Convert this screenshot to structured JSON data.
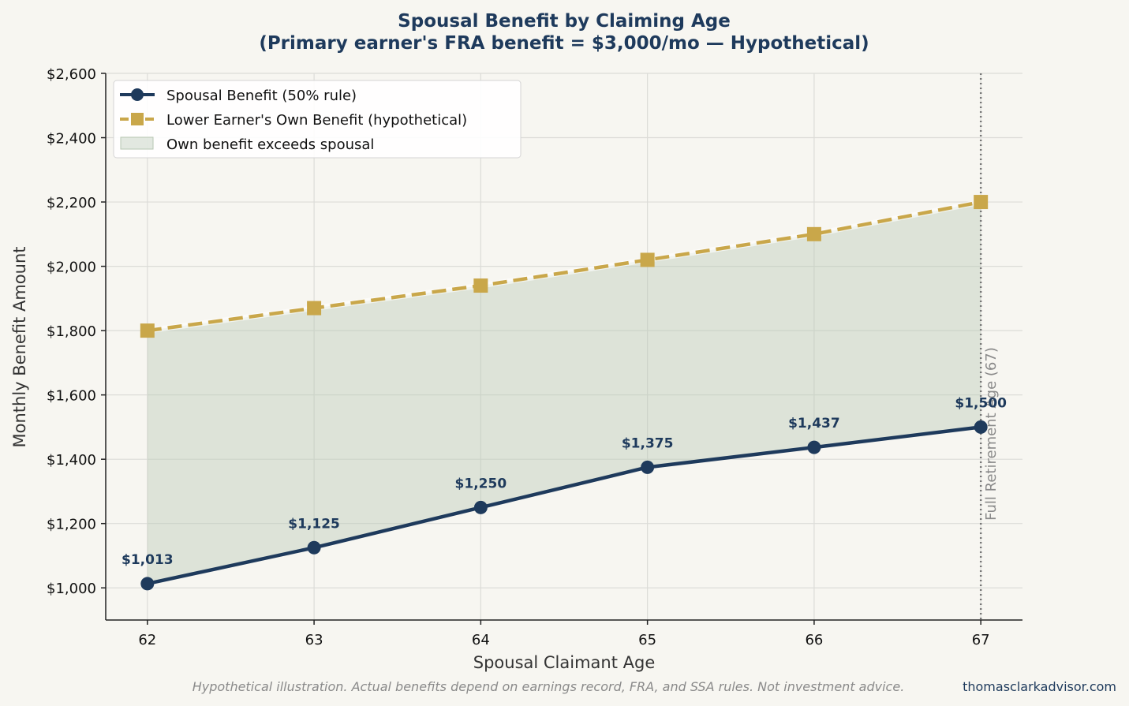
{
  "chart_data": {
    "type": "line",
    "title_line1": "Spousal Benefit by Claiming Age",
    "title_line2": "(Primary earner's FRA benefit = $3,000/mo — Hypothetical)",
    "xlabel": "Spousal Claimant Age",
    "ylabel": "Monthly Benefit Amount",
    "x": [
      62,
      63,
      64,
      65,
      66,
      67
    ],
    "x_tick_labels": [
      "62",
      "63",
      "64",
      "65",
      "66",
      "67"
    ],
    "xlim": [
      61.75,
      67.25
    ],
    "ylim": [
      900,
      2600
    ],
    "y_ticks": [
      1000,
      1200,
      1400,
      1600,
      1800,
      2000,
      2200,
      2400,
      2600
    ],
    "y_tick_labels": [
      "$1,000",
      "$1,200",
      "$1,400",
      "$1,600",
      "$1,800",
      "$2,000",
      "$2,200",
      "$2,400",
      "$2,600"
    ],
    "grid": true,
    "legend_position": "top-left",
    "series": [
      {
        "name": "Spousal Benefit (50% rule)",
        "values": [
          1013,
          1125,
          1250,
          1375,
          1437,
          1500
        ],
        "data_labels": [
          "$1,013",
          "$1,125",
          "$1,250",
          "$1,375",
          "$1,437",
          "$1,500"
        ],
        "color": "#1e3a5c",
        "marker": "circle",
        "line_style": "solid"
      },
      {
        "name": "Lower Earner's Own Benefit (hypothetical)",
        "values": [
          1800,
          1870,
          1940,
          2020,
          2100,
          2200
        ],
        "color": "#c9a74a",
        "marker": "square",
        "line_style": "dashed"
      }
    ],
    "fill_between": {
      "name": "Own benefit exceeds spousal",
      "color": "#b7c7b3"
    },
    "reference_line": {
      "x": 67,
      "label": "Full Retirement Age (67)",
      "color": "#777777",
      "line_style": "dotted"
    }
  },
  "footer": {
    "disclaimer": "Hypothetical illustration. Actual benefits depend on earnings record, FRA, and SSA rules. Not investment advice.",
    "website": "thomasclarkadvisor.com"
  }
}
